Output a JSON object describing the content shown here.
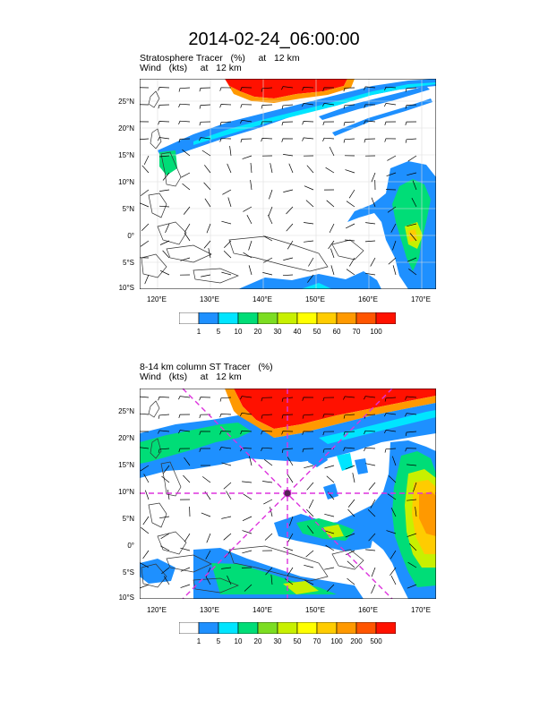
{
  "title": "2014-02-24_06:00:00",
  "panels": [
    {
      "id": "upper",
      "title_line1": "Stratosphere Tracer   (%)     at   12 km",
      "title_line2": "Wind   (kts)     at   12 km",
      "lat_labels": [
        "25°N",
        "20°N",
        "15°N",
        "10°N",
        "5°N",
        "0°",
        "5°S",
        "10°S"
      ],
      "lon_labels": [
        "120°E",
        "130°E",
        "140°E",
        "150°E",
        "160°E",
        "170°E"
      ],
      "colorbar": {
        "labels": [
          "1",
          "5",
          "10",
          "20",
          "30",
          "40",
          "50",
          "60",
          "70",
          "100"
        ],
        "colors": [
          "#ffffff",
          "#1e90ff",
          "#00e5ff",
          "#00dd77",
          "#7cdd22",
          "#c8f000",
          "#ffff00",
          "#ffcc00",
          "#ff9900",
          "#ff5500",
          "#ff1100"
        ]
      }
    },
    {
      "id": "lower",
      "title_line1": "8-14 km column ST Tracer   (%)",
      "title_line2": "Wind   (kts)     at   12 km",
      "lat_labels": [
        "25°N",
        "20°N",
        "15°N",
        "10°N",
        "5°N",
        "0°",
        "5°S",
        "10°S"
      ],
      "lon_labels": [
        "120°E",
        "130°E",
        "140°E",
        "150°E",
        "160°E",
        "170°E"
      ],
      "colorbar": {
        "labels": [
          "1",
          "5",
          "10",
          "20",
          "30",
          "50",
          "70",
          "100",
          "200",
          "500"
        ],
        "colors": [
          "#ffffff",
          "#1e90ff",
          "#00e5ff",
          "#00dd77",
          "#7cdd22",
          "#c8f000",
          "#ffff00",
          "#ffcc00",
          "#ff9900",
          "#ff5500",
          "#ff1100"
        ]
      },
      "marker_color": "#dd33dd"
    }
  ]
}
